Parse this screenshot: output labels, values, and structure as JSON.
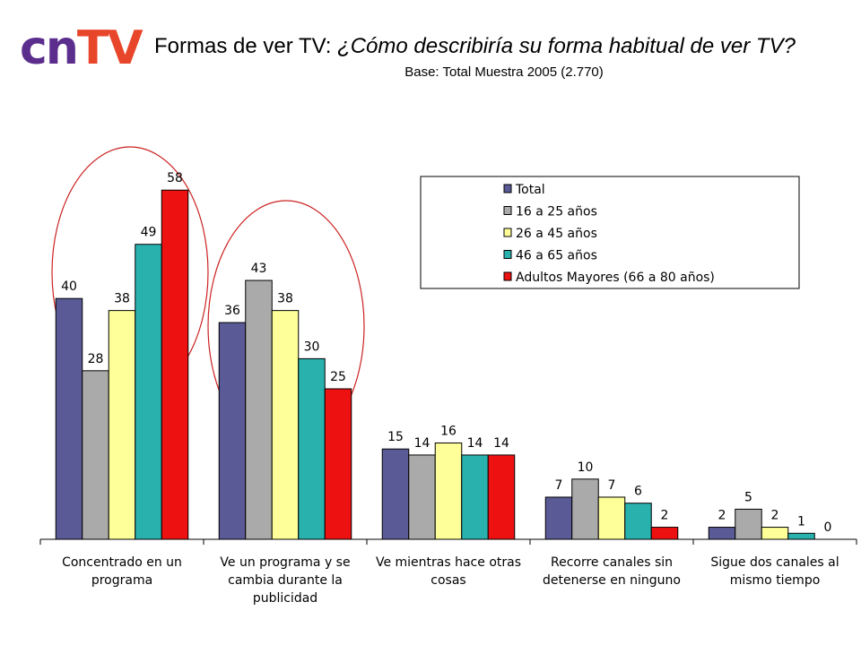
{
  "logo": {
    "part1": "cn",
    "part2": "TV"
  },
  "header": {
    "title_prefix": "Formas de ver TV: ",
    "title_question": "¿Cómo describiría su forma habitual de ver TV?",
    "subtitle": "Base: Total Muestra 2005 (2.770)"
  },
  "colors": {
    "Total": "#5a5a96",
    "16 a 25 años": "#aaaaaa",
    "26 a 45 años": "#ffff99",
    "46 a 65 años": "#29b1ae",
    "Adultos Mayores (66 a 80 años)": "#ee1111",
    "highlight_ellipse": "#cc2222"
  },
  "chart_data": {
    "type": "bar",
    "title": "",
    "xlabel": "",
    "ylabel": "",
    "ylim": [
      0,
      70
    ],
    "grid": false,
    "legend_position": "top-right",
    "categories": [
      [
        "Concentrado en un",
        "programa"
      ],
      [
        "Ve un programa y se",
        "cambia durante la",
        "publicidad"
      ],
      [
        "Ve mientras hace otras",
        "cosas"
      ],
      [
        "Recorre canales sin",
        "detenerse en ninguno"
      ],
      [
        "Sigue dos canales al",
        "mismo tiempo"
      ]
    ],
    "series": [
      {
        "name": "Total",
        "values": [
          40,
          36,
          15,
          7,
          2
        ]
      },
      {
        "name": "16 a 25 años",
        "values": [
          28,
          43,
          14,
          10,
          5
        ]
      },
      {
        "name": "26 a 45 años",
        "values": [
          38,
          38,
          16,
          7,
          2
        ]
      },
      {
        "name": "46 a 65 años",
        "values": [
          49,
          30,
          14,
          6,
          1
        ]
      },
      {
        "name": "Adultos Mayores (66 a 80 años)",
        "values": [
          58,
          25,
          14,
          2,
          0
        ]
      }
    ],
    "highlighted_categories": [
      0,
      1
    ]
  }
}
